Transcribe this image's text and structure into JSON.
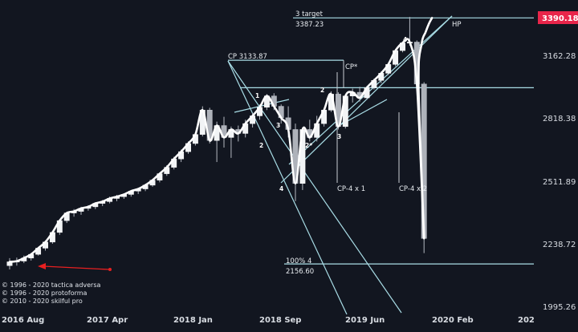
{
  "chart_data": {
    "type": "candlestick",
    "current_price": "3390.18",
    "y_ticks": [
      "3162.28",
      "2818.38",
      "2511.89",
      "2238.72",
      "1995.26"
    ],
    "y_tick_values": [
      3162.28,
      2818.38,
      2511.89,
      2238.72,
      1995.26
    ],
    "x_ticks": [
      "2016 Aug",
      "2017 Apr",
      "2018 Jan",
      "2018 Sep",
      "2019 Jun",
      "2020 Feb",
      "202"
    ],
    "annotations": {
      "target_label": "3 target",
      "target_value": "3387.23",
      "hp_label": "HP",
      "cp_label": "CP 3133.87",
      "cp_star": "CP*",
      "cp4x1": "CP-4 x 1",
      "cp4x2": "CP-4 x 2",
      "pct_label": "100%  4",
      "pct_value": "2156.60"
    },
    "wave_labels": [
      "1",
      "2",
      "3",
      "4",
      "2",
      "2*",
      "3",
      "4"
    ],
    "copyright": [
      "© 1996 - 2020 tactica adversa",
      "© 1996 - 2020 protoforma",
      "© 2010 - 2020 skilful pro"
    ],
    "candles": [
      [
        2150,
        2180,
        2135,
        2165
      ],
      [
        2165,
        2182,
        2150,
        2168
      ],
      [
        2168,
        2190,
        2160,
        2180
      ],
      [
        2180,
        2200,
        2170,
        2195
      ],
      [
        2195,
        2225,
        2190,
        2220
      ],
      [
        2220,
        2250,
        2210,
        2245
      ],
      [
        2245,
        2290,
        2238,
        2285
      ],
      [
        2285,
        2340,
        2275,
        2335
      ],
      [
        2335,
        2372,
        2325,
        2368
      ],
      [
        2368,
        2385,
        2352,
        2375
      ],
      [
        2375,
        2395,
        2360,
        2388
      ],
      [
        2388,
        2402,
        2378,
        2395
      ],
      [
        2395,
        2415,
        2385,
        2410
      ],
      [
        2410,
        2425,
        2398,
        2418
      ],
      [
        2418,
        2440,
        2410,
        2432
      ],
      [
        2432,
        2448,
        2420,
        2440
      ],
      [
        2440,
        2455,
        2430,
        2450
      ],
      [
        2450,
        2470,
        2440,
        2465
      ],
      [
        2465,
        2480,
        2452,
        2475
      ],
      [
        2475,
        2498,
        2465,
        2492
      ],
      [
        2492,
        2520,
        2485,
        2515
      ],
      [
        2515,
        2550,
        2505,
        2545
      ],
      [
        2545,
        2585,
        2535,
        2575
      ],
      [
        2575,
        2625,
        2565,
        2615
      ],
      [
        2615,
        2660,
        2600,
        2650
      ],
      [
        2650,
        2700,
        2640,
        2690
      ],
      [
        2690,
        2745,
        2680,
        2735
      ],
      [
        2735,
        2880,
        2725,
        2860
      ],
      [
        2860,
        2872,
        2690,
        2705
      ],
      [
        2705,
        2800,
        2600,
        2780
      ],
      [
        2780,
        2825,
        2670,
        2720
      ],
      [
        2720,
        2775,
        2620,
        2760
      ],
      [
        2760,
        2780,
        2700,
        2740
      ],
      [
        2740,
        2810,
        2720,
        2790
      ],
      [
        2790,
        2845,
        2770,
        2830
      ],
      [
        2830,
        2890,
        2810,
        2875
      ],
      [
        2875,
        2945,
        2860,
        2935
      ],
      [
        2935,
        2950,
        2860,
        2880
      ],
      [
        2880,
        2890,
        2790,
        2820
      ],
      [
        2820,
        2880,
        2720,
        2760
      ],
      [
        2760,
        2790,
        2420,
        2500
      ],
      [
        2500,
        2770,
        2470,
        2760
      ],
      [
        2760,
        2810,
        2700,
        2720
      ],
      [
        2720,
        2830,
        2700,
        2790
      ],
      [
        2790,
        2870,
        2775,
        2860
      ],
      [
        2860,
        2960,
        2850,
        2945
      ],
      [
        2945,
        2955,
        2760,
        2775
      ],
      [
        2775,
        2945,
        2765,
        2935
      ],
      [
        2935,
        2975,
        2900,
        2955
      ],
      [
        2955,
        2985,
        2905,
        2925
      ],
      [
        2925,
        2990,
        2915,
        2980
      ],
      [
        2980,
        3030,
        2970,
        3020
      ],
      [
        3020,
        3070,
        3005,
        3060
      ],
      [
        3060,
        3120,
        3050,
        3110
      ],
      [
        3110,
        3200,
        3100,
        3190
      ],
      [
        3190,
        3245,
        3180,
        3235
      ],
      [
        3240,
        3393,
        3220,
        3240
      ],
      [
        3240,
        3250,
        2975,
        3000
      ],
      [
        3000,
        3010,
        2200,
        2260
      ]
    ],
    "line_extra": [
      3000,
      3230,
      3300,
      3350,
      3387
    ]
  }
}
